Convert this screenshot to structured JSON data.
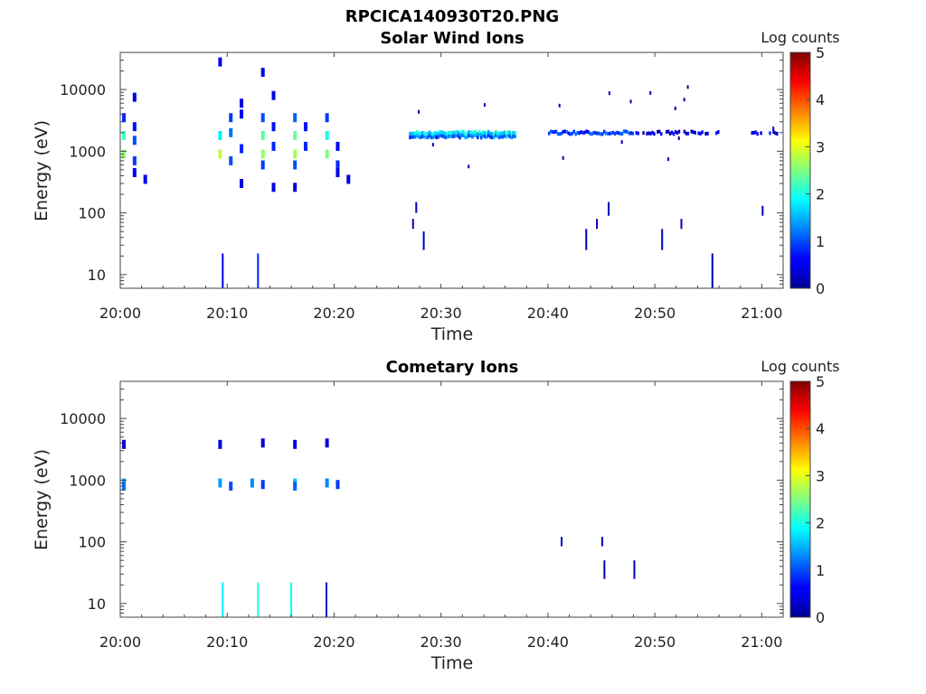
{
  "figure": {
    "title": "RPCICA140930T20.PNG"
  },
  "chart_data": [
    {
      "type": "heatmap",
      "title": "Solar Wind Ions",
      "xlabel": "Time",
      "ylabel": "Energy (eV)",
      "x_ticks": [
        "20:00",
        "20:10",
        "20:20",
        "20:30",
        "20:40",
        "20:50",
        "21:00"
      ],
      "x_range": [
        "20:00",
        "21:02"
      ],
      "y_scale": "log",
      "y_ticks": [
        "10",
        "100",
        "1000",
        "10000"
      ],
      "y_range": [
        6,
        40000
      ],
      "colorbar": {
        "label": "Log counts",
        "ticks": [
          "0",
          "1",
          "2",
          "3",
          "4",
          "5"
        ],
        "range": [
          0,
          5
        ],
        "colormap": "jet"
      },
      "cells": [
        [
          "20:00",
          1800,
          2.2
        ],
        [
          "20:00",
          900,
          2.6
        ],
        [
          "20:00",
          3500,
          0.8
        ],
        [
          "20:01",
          1500,
          1.0
        ],
        [
          "20:01",
          700,
          0.9
        ],
        [
          "20:01",
          2500,
          0.7
        ],
        [
          "20:01",
          450,
          0.6
        ],
        [
          "20:01",
          7500,
          0.5
        ],
        [
          "20:02",
          350,
          0.5
        ],
        [
          "20:09",
          1800,
          1.8
        ],
        [
          "20:09",
          900,
          2.8
        ],
        [
          "20:10",
          3500,
          0.9
        ],
        [
          "20:10",
          700,
          1.0
        ],
        [
          "20:10",
          2000,
          1.2
        ],
        [
          "20:11",
          1100,
          0.8
        ],
        [
          "20:11",
          4000,
          0.6
        ],
        [
          "20:11",
          300,
          0.5
        ],
        [
          "20:11",
          6000,
          0.5
        ],
        [
          "20:09",
          28000,
          0.5
        ],
        [
          "20:13",
          1800,
          2.3
        ],
        [
          "20:13",
          900,
          2.6
        ],
        [
          "20:13",
          3500,
          1.0
        ],
        [
          "20:13",
          600,
          0.9
        ],
        [
          "20:14",
          1200,
          0.8
        ],
        [
          "20:14",
          2500,
          0.7
        ],
        [
          "20:14",
          8000,
          0.5
        ],
        [
          "20:14",
          260,
          0.5
        ],
        [
          "20:13",
          19000,
          0.5
        ],
        [
          "20:16",
          1800,
          2.4
        ],
        [
          "20:16",
          900,
          2.7
        ],
        [
          "20:16",
          3500,
          1.1
        ],
        [
          "20:16",
          600,
          1.0
        ],
        [
          "20:17",
          1200,
          0.8
        ],
        [
          "20:17",
          2500,
          0.7
        ],
        [
          "20:16",
          260,
          0.5
        ],
        [
          "20:19",
          1800,
          2.0
        ],
        [
          "20:19",
          900,
          2.5
        ],
        [
          "20:19",
          3500,
          0.9
        ],
        [
          "20:20",
          600,
          0.8
        ],
        [
          "20:20",
          1200,
          0.6
        ],
        [
          "20:20",
          450,
          0.5
        ],
        [
          "20:21",
          350,
          0.5
        ]
      ],
      "bands": [
        {
          "start": "20:27",
          "end": "20:37",
          "energy": 1800,
          "mean": 1.8
        },
        {
          "start": "20:40",
          "end": "20:48",
          "energy": 1800,
          "mean": 0.9
        },
        {
          "start": "20:48",
          "end": "20:56",
          "energy": 1800,
          "mean": 0.4
        },
        {
          "start": "20:59",
          "end": "21:02",
          "energy": 1800,
          "mean": 0.5
        }
      ],
      "spikes": [
        {
          "time": "20:09.5",
          "from": 6,
          "to": 22,
          "value": 0.5
        },
        {
          "time": "20:12.8",
          "from": 6,
          "to": 22,
          "value": 0.8
        },
        {
          "time": "20:55.3",
          "from": 6,
          "to": 22,
          "value": 0.3
        },
        {
          "time": "20:27.3",
          "from": 55,
          "to": 80,
          "value": 0.3
        },
        {
          "time": "20:28.3",
          "from": 25,
          "to": 50,
          "value": 0.3
        },
        {
          "time": "20:27.6",
          "from": 100,
          "to": 150,
          "value": 0.3
        },
        {
          "time": "20:43.5",
          "from": 25,
          "to": 55,
          "value": 0.3
        },
        {
          "time": "20:44.5",
          "from": 55,
          "to": 80,
          "value": 0.3
        },
        {
          "time": "20:45.6",
          "from": 90,
          "to": 150,
          "value": 0.3
        },
        {
          "time": "20:50.6",
          "from": 25,
          "to": 55,
          "value": 0.3
        },
        {
          "time": "20:52.4",
          "from": 55,
          "to": 80,
          "value": 0.3
        },
        {
          "time": "21:00",
          "from": 90,
          "to": 130,
          "value": 0.3
        }
      ]
    },
    {
      "type": "heatmap",
      "title": "Cometary Ions",
      "xlabel": "Time",
      "ylabel": "Energy (eV)",
      "x_ticks": [
        "20:00",
        "20:10",
        "20:20",
        "20:30",
        "20:40",
        "20:50",
        "21:00"
      ],
      "x_range": [
        "20:00",
        "21:02"
      ],
      "y_scale": "log",
      "y_ticks": [
        "10",
        "100",
        "1000",
        "10000"
      ],
      "y_range": [
        6,
        40000
      ],
      "colorbar": {
        "label": "Log counts",
        "ticks": [
          "0",
          "1",
          "2",
          "3",
          "4",
          "5"
        ],
        "range": [
          0,
          5
        ],
        "colormap": "jet"
      },
      "cells": [
        [
          "20:00",
          900,
          1.5
        ],
        [
          "20:00",
          800,
          1.2
        ],
        [
          "20:00",
          3800,
          0.4
        ],
        [
          "20:09",
          900,
          1.4
        ],
        [
          "20:10",
          800,
          1.0
        ],
        [
          "20:09",
          3800,
          0.5
        ],
        [
          "20:12",
          900,
          1.3
        ],
        [
          "20:13",
          850,
          0.9
        ],
        [
          "20:13",
          4000,
          0.4
        ],
        [
          "20:16",
          900,
          1.6
        ],
        [
          "20:16",
          800,
          1.1
        ],
        [
          "20:16",
          3800,
          0.5
        ],
        [
          "20:19",
          900,
          1.3
        ],
        [
          "20:20",
          850,
          0.9
        ],
        [
          "20:19",
          4000,
          0.4
        ]
      ],
      "bands": [],
      "spikes": [
        {
          "time": "20:09.5",
          "from": 6,
          "to": 22,
          "value": 1.8
        },
        {
          "time": "20:12.8",
          "from": 6,
          "to": 22,
          "value": 2.0
        },
        {
          "time": "20:15.9",
          "from": 6,
          "to": 22,
          "value": 1.9
        },
        {
          "time": "20:19.2",
          "from": 6,
          "to": 22,
          "value": 0.5
        },
        {
          "time": "20:41.2",
          "from": 85,
          "to": 120,
          "value": 0.3
        },
        {
          "time": "20:45.0",
          "from": 85,
          "to": 120,
          "value": 0.3
        },
        {
          "time": "20:45.2",
          "from": 25,
          "to": 50,
          "value": 0.3
        },
        {
          "time": "20:48.0",
          "from": 25,
          "to": 50,
          "value": 0.3
        }
      ]
    }
  ]
}
